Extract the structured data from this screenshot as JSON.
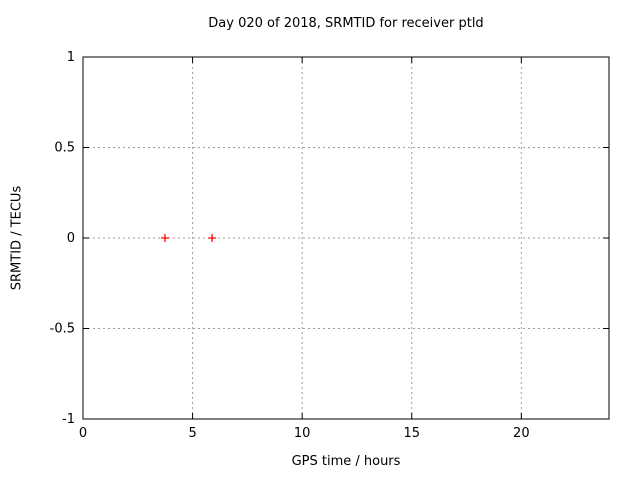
{
  "chart_data": {
    "type": "scatter",
    "title": "Day 020 of 2018, SRMTID for receiver ptld",
    "xlabel": "GPS time / hours",
    "ylabel": "SRMTID / TECUs",
    "xlim": [
      0,
      24
    ],
    "ylim": [
      -1,
      1
    ],
    "xticks": [
      0,
      5,
      10,
      15,
      20
    ],
    "xtick_labels": [
      "0",
      "5",
      "10",
      "15",
      "20"
    ],
    "yticks": [
      -1,
      -0.5,
      0,
      0.5,
      1
    ],
    "ytick_labels": [
      "-1",
      "-0.5",
      "0",
      "0.5",
      "1"
    ],
    "grid": true,
    "grid_style": "dotted",
    "legend": "none",
    "series": [
      {
        "name": "SRMTID",
        "marker": "plus",
        "color": "#ff0000",
        "points": [
          {
            "x": 3.74,
            "y": 0.0
          },
          {
            "x": 5.89,
            "y": 0.0
          }
        ]
      }
    ],
    "styles": {
      "background": "#ffffff",
      "axis_color": "#000000",
      "grid_color": "#9e9e9e",
      "text_color": "#000000"
    }
  }
}
